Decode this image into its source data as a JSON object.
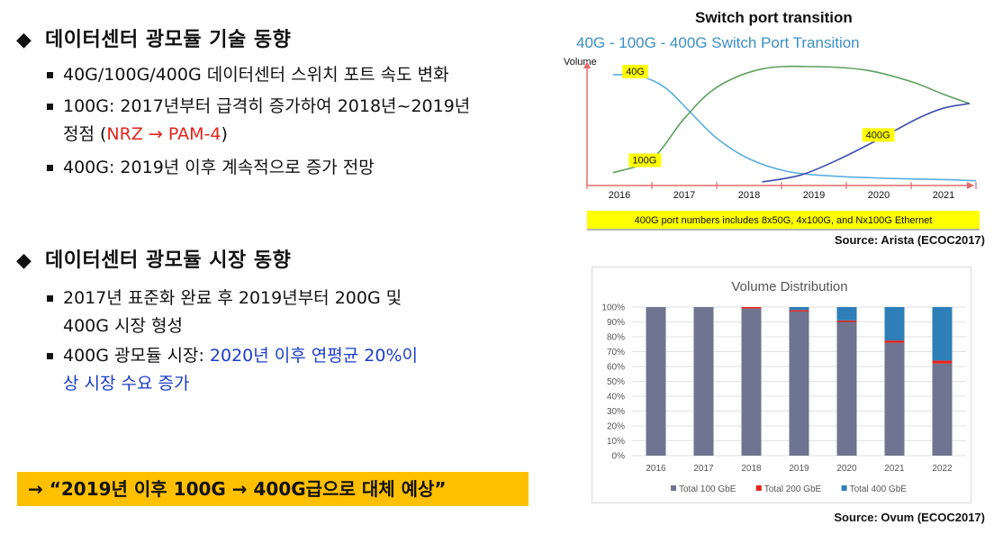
{
  "sections": [
    {
      "title": "데이터센터 광모듈 기술 동향",
      "bullets": [
        {
          "lines": [
            [
              {
                "t": "40G/100G/400G 데이터센터 스위치 포트 속도 변화"
              }
            ]
          ]
        },
        {
          "lines": [
            [
              {
                "t": "100G: 2017년부터 급격히 증가하여 2018년~2019년"
              }
            ],
            [
              {
                "t": "정점 ("
              },
              {
                "t": "NRZ → PAM-4",
                "c": "red"
              },
              {
                "t": ")"
              }
            ]
          ]
        },
        {
          "lines": [
            [
              {
                "t": "400G: 2019년 이후 계속적으로 증가 전망"
              }
            ]
          ]
        }
      ]
    },
    {
      "title": "데이터센터 광모듈 시장 동향",
      "bullets": [
        {
          "lines": [
            [
              {
                "t": "2017년 표준화 완료 후 2019년부터 200G 및"
              }
            ],
            [
              {
                "t": "400G 시장 형성"
              }
            ]
          ]
        },
        {
          "lines": [
            [
              {
                "t": "400G 광모듈 시장: "
              },
              {
                "t": "2020년 이후 연평균 20%이",
                "c": "blue"
              }
            ],
            [
              {
                "t": "상 시장 수요 증가",
                "c": "blue"
              }
            ]
          ]
        }
      ]
    }
  ],
  "callout": "→ “2019년 이후 100G → 400G급으로 대체 예상”",
  "figure1": {
    "heading": "Switch  port transition",
    "source": "Source: Arista (ECOC2017)",
    "chart_data": {
      "type": "line",
      "title": "40G - 100G - 400G Switch Port Transition",
      "ylabel": "Volume",
      "x": [
        2016,
        2017,
        2018,
        2019,
        2020,
        2021
      ],
      "series": [
        {
          "name": "40G",
          "color": "#5aaee0",
          "points": [
            [
              2015.9,
              0.93
            ],
            [
              2016.3,
              0.92
            ],
            [
              2016.7,
              0.82
            ],
            [
              2017.1,
              0.6
            ],
            [
              2017.5,
              0.38
            ],
            [
              2018.0,
              0.2
            ],
            [
              2018.6,
              0.09
            ],
            [
              2019.3,
              0.05
            ],
            [
              2020.2,
              0.03
            ],
            [
              2021.0,
              0.02
            ],
            [
              2021.5,
              0.01
            ]
          ]
        },
        {
          "name": "100G",
          "color": "#5da05d",
          "points": [
            [
              2015.9,
              0.08
            ],
            [
              2016.5,
              0.2
            ],
            [
              2017.0,
              0.55
            ],
            [
              2017.5,
              0.82
            ],
            [
              2018.2,
              0.98
            ],
            [
              2019.0,
              1.0
            ],
            [
              2019.8,
              0.97
            ],
            [
              2020.5,
              0.87
            ],
            [
              2021.0,
              0.76
            ],
            [
              2021.4,
              0.68
            ]
          ]
        },
        {
          "name": "400G",
          "color": "#3e4fae",
          "points": [
            [
              2018.2,
              0.0
            ],
            [
              2018.8,
              0.06
            ],
            [
              2019.4,
              0.2
            ],
            [
              2020.0,
              0.37
            ],
            [
              2020.6,
              0.55
            ],
            [
              2021.0,
              0.64
            ],
            [
              2021.4,
              0.68
            ]
          ]
        }
      ],
      "labels": [
        {
          "text": "40G",
          "x": 2016.1,
          "y": 0.93
        },
        {
          "text": "100G",
          "x": 2016.2,
          "y": 0.16
        },
        {
          "text": "400G",
          "x": 2019.8,
          "y": 0.38
        }
      ],
      "footnote": "400G port numbers includes 8x50G, 4x100G, and Nx100G Ethernet"
    }
  },
  "figure2": {
    "source": "Source: Ovum (ECOC2017)",
    "chart_data": {
      "type": "bar",
      "stacked": true,
      "title": "Volume Distribution",
      "categories": [
        "2016",
        "2017",
        "2018",
        "2019",
        "2020",
        "2021",
        "2022"
      ],
      "y_ticks": [
        "0%",
        "10%",
        "20%",
        "30%",
        "40%",
        "50%",
        "60%",
        "70%",
        "80%",
        "90%",
        "100%"
      ],
      "ylim": [
        0,
        100
      ],
      "series": [
        {
          "name": "Total 100 GbE",
          "color": "#6e7590",
          "values": [
            100,
            100,
            99,
            97,
            90,
            76,
            62
          ]
        },
        {
          "name": "Total 200 GbE",
          "color": "#e3241b",
          "values": [
            0,
            0,
            1,
            1,
            1,
            1.5,
            2
          ]
        },
        {
          "name": "Total 400 GbE",
          "color": "#2e7fb8",
          "values": [
            0,
            0,
            0,
            2,
            9,
            22.5,
            36
          ]
        }
      ]
    }
  }
}
